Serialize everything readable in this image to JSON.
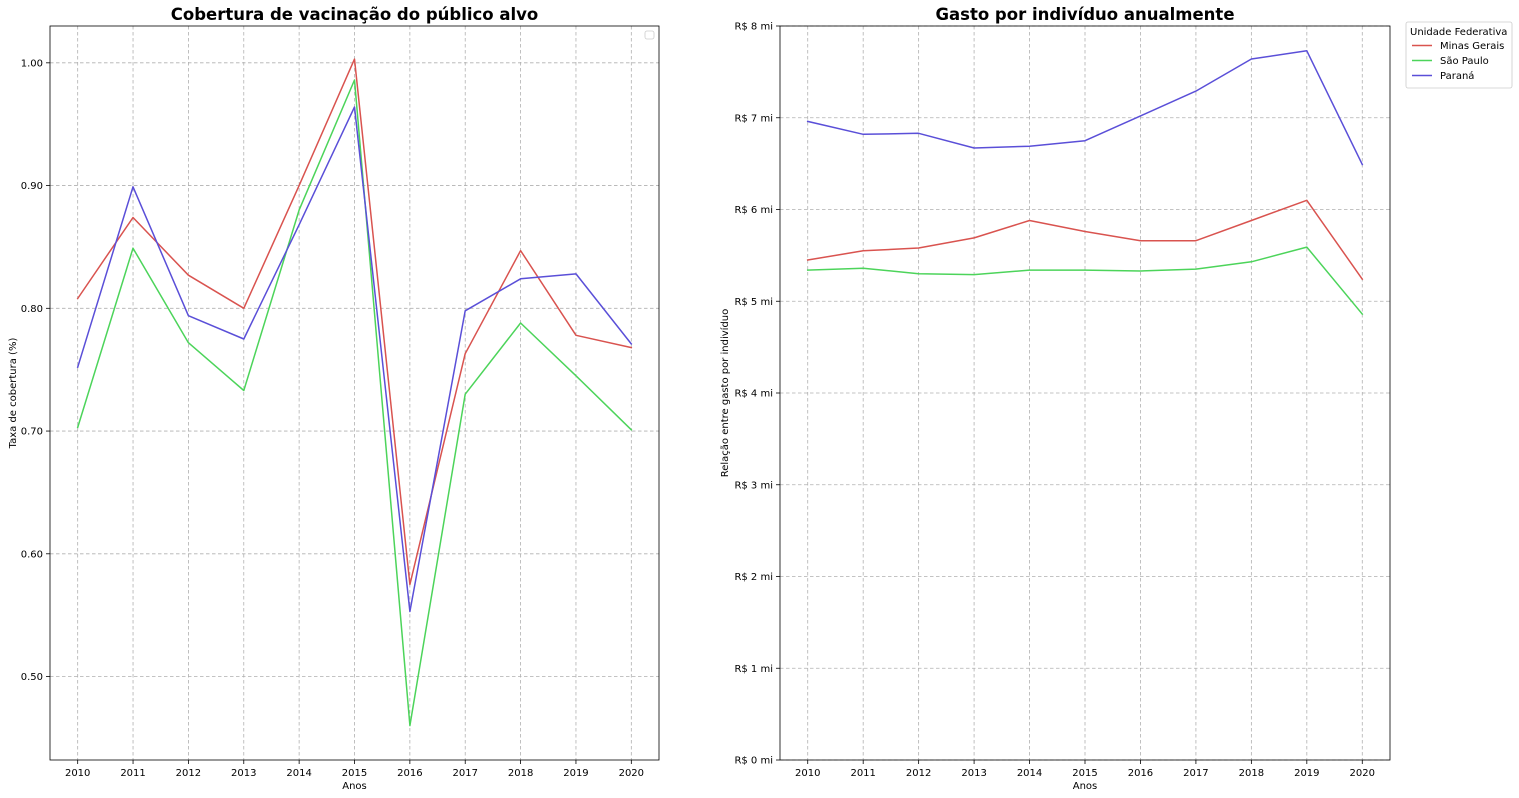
{
  "chart_data": [
    {
      "type": "line",
      "title": "Cobertura de vacinação do público alvo",
      "xlabel": "Anos",
      "ylabel": "Taxa de cobertura (%)",
      "x": [
        2010,
        2011,
        2012,
        2013,
        2014,
        2015,
        2016,
        2017,
        2018,
        2019,
        2020
      ],
      "xticks": [
        "2010",
        "2011",
        "2012",
        "2013",
        "2014",
        "2015",
        "2016",
        "2017",
        "2018",
        "2019",
        "2020"
      ],
      "ylim": [
        0.432,
        1.03
      ],
      "yticks": [
        0.5,
        0.6,
        0.7,
        0.8,
        0.9,
        1.0
      ],
      "ytick_labels": [
        "0.50",
        "0.60",
        "0.70",
        "0.80",
        "0.90",
        "1.00"
      ],
      "grid": true,
      "legend": "empty box top-right",
      "series": [
        {
          "values": [
            0.808,
            0.874,
            0.827,
            0.8,
            0.9,
            1.003,
            0.575,
            0.763,
            0.847,
            0.778,
            0.768
          ],
          "color": "#d9534f"
        },
        {
          "values": [
            0.703,
            0.849,
            0.772,
            0.733,
            0.88,
            0.986,
            0.46,
            0.73,
            0.788,
            0.745,
            0.701
          ],
          "color": "#4cd45a"
        },
        {
          "values": [
            0.752,
            0.899,
            0.794,
            0.775,
            0.868,
            0.964,
            0.553,
            0.798,
            0.824,
            0.828,
            0.771
          ],
          "color": "#5a4fd8"
        }
      ]
    },
    {
      "type": "line",
      "title": "Gasto por indivíduo anualmente",
      "xlabel": "Anos",
      "ylabel": "Relação entre gasto por indivíduo",
      "x": [
        2010,
        2011,
        2012,
        2013,
        2014,
        2015,
        2016,
        2017,
        2018,
        2019,
        2020
      ],
      "xticks": [
        "2010",
        "2011",
        "2012",
        "2013",
        "2014",
        "2015",
        "2016",
        "2017",
        "2018",
        "2019",
        "2020"
      ],
      "ylim": [
        0,
        8
      ],
      "yticks": [
        0,
        1,
        2,
        3,
        4,
        5,
        6,
        7,
        8
      ],
      "ytick_labels": [
        "R$ 0 mi",
        "R$ 1 mi",
        "R$ 2 mi",
        "R$ 3 mi",
        "R$ 4 mi",
        "R$ 5 mi",
        "R$ 6 mi",
        "R$ 7 mi",
        "R$ 8 mi"
      ],
      "grid": true,
      "legend_title": "Unidade Federativa",
      "legend": "outside top-right",
      "series": [
        {
          "name": "Minas Gerais",
          "values": [
            5.45,
            5.55,
            5.58,
            5.69,
            5.88,
            5.76,
            5.66,
            5.66,
            5.88,
            6.1,
            5.24
          ],
          "color": "#d9534f"
        },
        {
          "name": "São Paulo",
          "values": [
            5.34,
            5.36,
            5.3,
            5.29,
            5.34,
            5.34,
            5.33,
            5.35,
            5.43,
            5.59,
            4.86
          ],
          "color": "#4cd45a"
        },
        {
          "name": "Paraná",
          "values": [
            6.96,
            6.82,
            6.83,
            6.67,
            6.69,
            6.75,
            7.02,
            7.29,
            7.64,
            7.73,
            6.49
          ],
          "color": "#5a4fd8"
        }
      ]
    }
  ]
}
